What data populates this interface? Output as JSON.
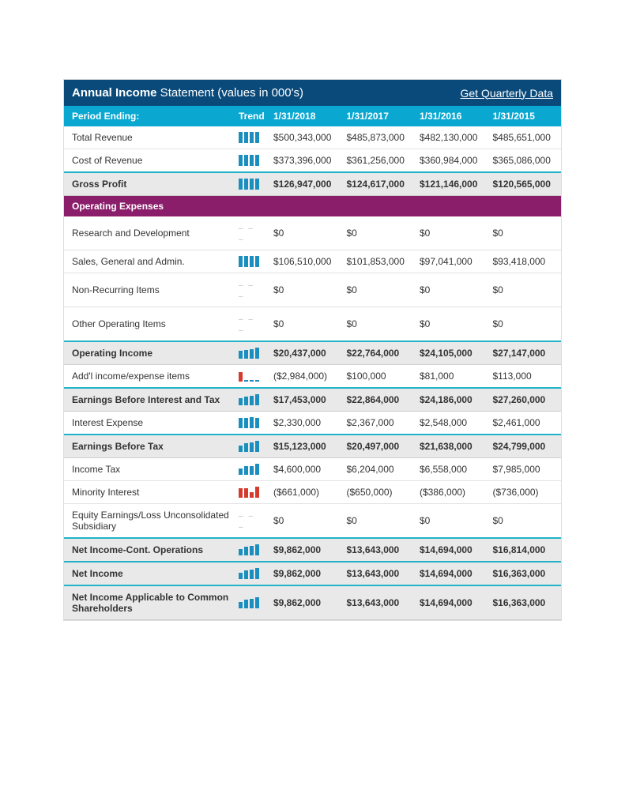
{
  "colors": {
    "titleBg": "#0a4a7a",
    "headerBg": "#0aa7d1",
    "sectionBg": "#8a1e6a",
    "hlBg": "#e9e9e9",
    "hlBorder": "#22b3c9",
    "rowBorder": "#e3e3e3",
    "barBlue": "#1a8fbf",
    "barRed": "#d63a2e",
    "emptyDash": "#bbbbbb"
  },
  "title": {
    "bold": "Annual Income",
    "rest": " Statement (values in 000's)",
    "link": "Get Quarterly Data"
  },
  "header": {
    "period": "Period Ending:",
    "trend": "Trend",
    "dates": [
      "1/31/2018",
      "1/31/2017",
      "1/31/2016",
      "1/31/2015"
    ]
  },
  "rows": [
    {
      "label": "Total Revenue",
      "values": [
        "$500,343,000",
        "$485,873,000",
        "$482,130,000",
        "$485,651,000"
      ],
      "spark": {
        "heights": [
          14,
          14,
          14,
          14
        ],
        "colors": [
          "#1a8fbf",
          "#1a8fbf",
          "#1a8fbf",
          "#1a8fbf"
        ]
      }
    },
    {
      "label": "Cost of Revenue",
      "values": [
        "$373,396,000",
        "$361,256,000",
        "$360,984,000",
        "$365,086,000"
      ],
      "spark": {
        "heights": [
          14,
          14,
          14,
          14
        ],
        "colors": [
          "#1a8fbf",
          "#1a8fbf",
          "#1a8fbf",
          "#1a8fbf"
        ]
      }
    },
    {
      "label": "Gross Profit",
      "hl": true,
      "values": [
        "$126,947,000",
        "$124,617,000",
        "$121,146,000",
        "$120,565,000"
      ],
      "spark": {
        "heights": [
          14,
          14,
          14,
          14
        ],
        "colors": [
          "#1a8fbf",
          "#1a8fbf",
          "#1a8fbf",
          "#1a8fbf"
        ]
      }
    },
    {
      "section": "Operating Expenses"
    },
    {
      "label": "Research and Development",
      "values": [
        "$0",
        "$0",
        "$0",
        "$0"
      ],
      "spark": null
    },
    {
      "label": "Sales, General and Admin.",
      "values": [
        "$106,510,000",
        "$101,853,000",
        "$97,041,000",
        "$93,418,000"
      ],
      "spark": {
        "heights": [
          14,
          14,
          14,
          14
        ],
        "colors": [
          "#1a8fbf",
          "#1a8fbf",
          "#1a8fbf",
          "#1a8fbf"
        ]
      }
    },
    {
      "label": "Non-Recurring Items",
      "values": [
        "$0",
        "$0",
        "$0",
        "$0"
      ],
      "spark": null
    },
    {
      "label": "Other Operating Items",
      "values": [
        "$0",
        "$0",
        "$0",
        "$0"
      ],
      "spark": null
    },
    {
      "label": "Operating Income",
      "hl": true,
      "values": [
        "$20,437,000",
        "$22,764,000",
        "$24,105,000",
        "$27,147,000"
      ],
      "spark": {
        "heights": [
          10,
          11,
          12,
          14
        ],
        "colors": [
          "#1a8fbf",
          "#1a8fbf",
          "#1a8fbf",
          "#1a8fbf"
        ]
      }
    },
    {
      "label": "Add'l income/expense items",
      "values": [
        "($2,984,000)",
        "$100,000",
        "$81,000",
        "$113,000"
      ],
      "spark": {
        "heights": [
          12,
          2,
          2,
          2
        ],
        "colors": [
          "#d63a2e",
          "#1a8fbf",
          "#1a8fbf",
          "#1a8fbf"
        ]
      }
    },
    {
      "label": "Earnings Before Interest and Tax",
      "hl": true,
      "values": [
        "$17,453,000",
        "$22,864,000",
        "$24,186,000",
        "$27,260,000"
      ],
      "spark": {
        "heights": [
          9,
          11,
          12,
          14
        ],
        "colors": [
          "#1a8fbf",
          "#1a8fbf",
          "#1a8fbf",
          "#1a8fbf"
        ]
      }
    },
    {
      "label": "Interest Expense",
      "values": [
        "$2,330,000",
        "$2,367,000",
        "$2,548,000",
        "$2,461,000"
      ],
      "spark": {
        "heights": [
          13,
          13,
          14,
          13
        ],
        "colors": [
          "#1a8fbf",
          "#1a8fbf",
          "#1a8fbf",
          "#1a8fbf"
        ]
      }
    },
    {
      "label": "Earnings Before Tax",
      "hl": true,
      "values": [
        "$15,123,000",
        "$20,497,000",
        "$21,638,000",
        "$24,799,000"
      ],
      "spark": {
        "heights": [
          8,
          11,
          12,
          14
        ],
        "colors": [
          "#1a8fbf",
          "#1a8fbf",
          "#1a8fbf",
          "#1a8fbf"
        ]
      }
    },
    {
      "label": "Income Tax",
      "values": [
        "$4,600,000",
        "$6,204,000",
        "$6,558,000",
        "$7,985,000"
      ],
      "spark": {
        "heights": [
          8,
          11,
          11,
          14
        ],
        "colors": [
          "#1a8fbf",
          "#1a8fbf",
          "#1a8fbf",
          "#1a8fbf"
        ]
      }
    },
    {
      "label": "Minority Interest",
      "values": [
        "($661,000)",
        "($650,000)",
        "($386,000)",
        "($736,000)"
      ],
      "spark": {
        "heights": [
          12,
          12,
          7,
          14
        ],
        "colors": [
          "#d63a2e",
          "#d63a2e",
          "#d63a2e",
          "#d63a2e"
        ]
      }
    },
    {
      "label": "Equity Earnings/Loss Unconsolidated Subsidiary",
      "values": [
        "$0",
        "$0",
        "$0",
        "$0"
      ],
      "spark": null
    },
    {
      "label": "Net Income-Cont. Operations",
      "hl": true,
      "values": [
        "$9,862,000",
        "$13,643,000",
        "$14,694,000",
        "$16,814,000"
      ],
      "spark": {
        "heights": [
          8,
          11,
          12,
          14
        ],
        "colors": [
          "#1a8fbf",
          "#1a8fbf",
          "#1a8fbf",
          "#1a8fbf"
        ]
      }
    },
    {
      "label": "Net Income",
      "hl": true,
      "values": [
        "$9,862,000",
        "$13,643,000",
        "$14,694,000",
        "$16,363,000"
      ],
      "spark": {
        "heights": [
          8,
          11,
          12,
          14
        ],
        "colors": [
          "#1a8fbf",
          "#1a8fbf",
          "#1a8fbf",
          "#1a8fbf"
        ]
      }
    },
    {
      "label": "Net Income Applicable to Common Shareholders",
      "hl": true,
      "values": [
        "$9,862,000",
        "$13,643,000",
        "$14,694,000",
        "$16,363,000"
      ],
      "spark": {
        "heights": [
          8,
          11,
          12,
          14
        ],
        "colors": [
          "#1a8fbf",
          "#1a8fbf",
          "#1a8fbf",
          "#1a8fbf"
        ]
      }
    }
  ]
}
